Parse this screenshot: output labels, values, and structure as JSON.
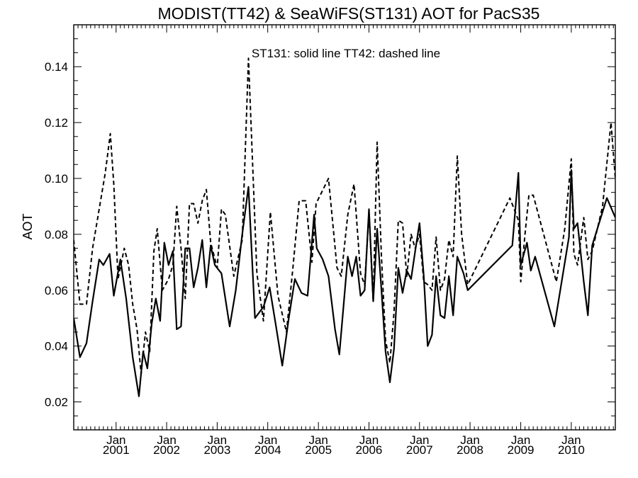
{
  "chart_data": {
    "type": "line",
    "title": "MODIST(TT42) & SeaWiFS(ST131)  AOT for PacS35",
    "annotation": "ST131: solid line   TT42: dashed line",
    "xlabel": "",
    "ylabel": "AOT",
    "xlim": [
      "2000-03-01",
      "2010-11-15"
    ],
    "ylim": [
      0.01,
      0.155
    ],
    "y_ticks": [
      0.02,
      0.04,
      0.06,
      0.08,
      0.1,
      0.12,
      0.14
    ],
    "y_tick_labels": [
      "0.02",
      "0.04",
      "0.06",
      "0.08",
      "0.10",
      "0.12",
      "0.14"
    ],
    "x_ticks": [
      {
        "month": "Jan",
        "year": "2001",
        "date": "2001-01-01"
      },
      {
        "month": "Jan",
        "year": "2002",
        "date": "2002-01-01"
      },
      {
        "month": "Jan",
        "year": "2003",
        "date": "2003-01-01"
      },
      {
        "month": "Jan",
        "year": "2004",
        "date": "2004-01-01"
      },
      {
        "month": "Jan",
        "year": "2005",
        "date": "2005-01-01"
      },
      {
        "month": "Jan",
        "year": "2006",
        "date": "2006-01-01"
      },
      {
        "month": "Jan",
        "year": "2007",
        "date": "2007-01-01"
      },
      {
        "month": "Jan",
        "year": "2008",
        "date": "2008-01-01"
      },
      {
        "month": "Jan",
        "year": "2009",
        "date": "2009-01-01"
      },
      {
        "month": "Jan",
        "year": "2010",
        "date": "2010-01-01"
      }
    ],
    "grid": false,
    "series": [
      {
        "name": "ST131",
        "style": "solid",
        "color": "#000000",
        "points": [
          [
            "2000-03-01",
            0.05
          ],
          [
            "2000-04-15",
            0.036
          ],
          [
            "2000-06-01",
            0.041
          ],
          [
            "2000-07-15",
            0.056
          ],
          [
            "2000-09-01",
            0.071
          ],
          [
            "2000-10-01",
            0.069
          ],
          [
            "2000-11-15",
            0.073
          ],
          [
            "2000-12-15",
            0.058
          ],
          [
            "2001-02-01",
            0.071
          ],
          [
            "2001-03-15",
            0.057
          ],
          [
            "2001-05-01",
            0.036
          ],
          [
            "2001-06-15",
            0.022
          ],
          [
            "2001-07-15",
            0.038
          ],
          [
            "2001-08-15",
            0.032
          ],
          [
            "2001-09-15",
            0.048
          ],
          [
            "2001-10-15",
            0.057
          ],
          [
            "2001-11-15",
            0.049
          ],
          [
            "2001-12-15",
            0.077
          ],
          [
            "2002-01-15",
            0.069
          ],
          [
            "2002-02-15",
            0.074
          ],
          [
            "2002-03-15",
            0.046
          ],
          [
            "2002-04-15",
            0.047
          ],
          [
            "2002-05-15",
            0.075
          ],
          [
            "2002-06-15",
            0.075
          ],
          [
            "2002-07-15",
            0.061
          ],
          [
            "2002-08-15",
            0.068
          ],
          [
            "2002-09-15",
            0.078
          ],
          [
            "2002-10-15",
            0.061
          ],
          [
            "2002-11-15",
            0.076
          ],
          [
            "2002-12-15",
            0.069
          ],
          [
            "2003-02-01",
            0.066
          ],
          [
            "2003-04-01",
            0.047
          ],
          [
            "2003-05-15",
            0.06
          ],
          [
            "2003-07-01",
            0.08
          ],
          [
            "2003-08-15",
            0.097
          ],
          [
            "2003-10-01",
            0.05
          ],
          [
            "2003-12-01",
            0.054
          ],
          [
            "2004-01-15",
            0.061
          ],
          [
            "2004-03-01",
            0.047
          ],
          [
            "2004-04-15",
            0.033
          ],
          [
            "2004-06-01",
            0.05
          ],
          [
            "2004-07-15",
            0.064
          ],
          [
            "2004-09-01",
            0.059
          ],
          [
            "2004-10-15",
            0.058
          ],
          [
            "2004-12-01",
            0.087
          ],
          [
            "2004-12-20",
            0.075
          ],
          [
            "2005-02-01",
            0.071
          ],
          [
            "2005-03-15",
            0.065
          ],
          [
            "2005-05-01",
            0.046
          ],
          [
            "2005-06-01",
            0.037
          ],
          [
            "2005-07-01",
            0.054
          ],
          [
            "2005-08-01",
            0.072
          ],
          [
            "2005-09-01",
            0.065
          ],
          [
            "2005-10-01",
            0.072
          ],
          [
            "2005-11-01",
            0.058
          ],
          [
            "2005-12-01",
            0.06
          ],
          [
            "2006-01-01",
            0.089
          ],
          [
            "2006-02-01",
            0.056
          ],
          [
            "2006-03-01",
            0.082
          ],
          [
            "2006-04-01",
            0.06
          ],
          [
            "2006-05-01",
            0.038
          ],
          [
            "2006-06-01",
            0.027
          ],
          [
            "2006-07-01",
            0.039
          ],
          [
            "2006-08-01",
            0.068
          ],
          [
            "2006-09-01",
            0.059
          ],
          [
            "2006-10-01",
            0.067
          ],
          [
            "2006-11-01",
            0.064
          ],
          [
            "2006-12-01",
            0.074
          ],
          [
            "2007-01-01",
            0.084
          ],
          [
            "2007-02-01",
            0.065
          ],
          [
            "2007-03-01",
            0.04
          ],
          [
            "2007-04-01",
            0.044
          ],
          [
            "2007-05-01",
            0.065
          ],
          [
            "2007-06-01",
            0.051
          ],
          [
            "2007-07-01",
            0.05
          ],
          [
            "2007-08-01",
            0.065
          ],
          [
            "2007-09-01",
            0.051
          ],
          [
            "2007-10-01",
            0.072
          ],
          [
            "2007-11-15",
            0.066
          ],
          [
            "2007-12-15",
            0.06
          ],
          [
            "2008-11-01",
            0.076
          ],
          [
            "2008-12-15",
            0.102
          ],
          [
            "2009-01-01",
            0.069
          ],
          [
            "2009-02-15",
            0.077
          ],
          [
            "2009-03-15",
            0.067
          ],
          [
            "2009-04-15",
            0.072
          ],
          [
            "2009-09-01",
            0.047
          ],
          [
            "2009-12-15",
            0.079
          ],
          [
            "2010-01-01",
            0.103
          ],
          [
            "2010-01-20",
            0.082
          ],
          [
            "2010-02-15",
            0.084
          ],
          [
            "2010-04-01",
            0.063
          ],
          [
            "2010-05-01",
            0.051
          ],
          [
            "2010-06-01",
            0.076
          ],
          [
            "2010-09-15",
            0.093
          ],
          [
            "2010-11-15",
            0.086
          ]
        ]
      },
      {
        "name": "TT42",
        "style": "dashed",
        "color": "#000000",
        "points": [
          [
            "2000-03-01",
            0.078
          ],
          [
            "2000-04-15",
            0.055
          ],
          [
            "2000-06-01",
            0.055
          ],
          [
            "2000-07-15",
            0.075
          ],
          [
            "2000-09-01",
            0.089
          ],
          [
            "2000-10-15",
            0.102
          ],
          [
            "2000-11-20",
            0.116
          ],
          [
            "2000-12-15",
            0.098
          ],
          [
            "2001-01-15",
            0.064
          ],
          [
            "2001-03-01",
            0.075
          ],
          [
            "2001-04-01",
            0.069
          ],
          [
            "2001-05-01",
            0.055
          ],
          [
            "2001-06-01",
            0.046
          ],
          [
            "2001-07-01",
            0.03
          ],
          [
            "2001-08-01",
            0.045
          ],
          [
            "2001-09-01",
            0.038
          ],
          [
            "2001-10-01",
            0.074
          ],
          [
            "2001-10-25",
            0.082
          ],
          [
            "2001-12-01",
            0.06
          ],
          [
            "2002-01-15",
            0.064
          ],
          [
            "2002-02-15",
            0.069
          ],
          [
            "2002-03-15",
            0.09
          ],
          [
            "2002-04-15",
            0.075
          ],
          [
            "2002-05-15",
            0.057
          ],
          [
            "2002-06-15",
            0.091
          ],
          [
            "2002-07-15",
            0.091
          ],
          [
            "2002-08-15",
            0.084
          ],
          [
            "2002-09-15",
            0.092
          ],
          [
            "2002-10-15",
            0.096
          ],
          [
            "2002-11-15",
            0.077
          ],
          [
            "2003-01-01",
            0.068
          ],
          [
            "2003-02-01",
            0.089
          ],
          [
            "2003-03-01",
            0.087
          ],
          [
            "2003-05-01",
            0.065
          ],
          [
            "2003-07-01",
            0.078
          ],
          [
            "2003-08-15",
            0.143
          ],
          [
            "2003-10-15",
            0.066
          ],
          [
            "2003-12-01",
            0.049
          ],
          [
            "2004-01-20",
            0.088
          ],
          [
            "2004-03-15",
            0.058
          ],
          [
            "2004-05-15",
            0.045
          ],
          [
            "2004-07-01",
            0.068
          ],
          [
            "2004-08-15",
            0.092
          ],
          [
            "2004-10-01",
            0.092
          ],
          [
            "2004-11-15",
            0.07
          ],
          [
            "2004-12-15",
            0.091
          ],
          [
            "2005-03-15",
            0.1
          ],
          [
            "2005-05-15",
            0.068
          ],
          [
            "2005-06-15",
            0.065
          ],
          [
            "2005-08-01",
            0.087
          ],
          [
            "2005-09-15",
            0.098
          ],
          [
            "2005-11-01",
            0.066
          ],
          [
            "2005-12-01",
            0.062
          ],
          [
            "2006-01-01",
            0.088
          ],
          [
            "2006-02-01",
            0.056
          ],
          [
            "2006-03-01",
            0.113
          ],
          [
            "2006-04-01",
            0.072
          ],
          [
            "2006-05-01",
            0.042
          ],
          [
            "2006-06-01",
            0.034
          ],
          [
            "2006-07-01",
            0.052
          ],
          [
            "2006-08-01",
            0.085
          ],
          [
            "2006-09-01",
            0.084
          ],
          [
            "2006-10-01",
            0.065
          ],
          [
            "2006-11-01",
            0.08
          ],
          [
            "2006-12-01",
            0.075
          ],
          [
            "2007-01-01",
            0.08
          ],
          [
            "2007-02-01",
            0.063
          ],
          [
            "2007-03-01",
            0.062
          ],
          [
            "2007-04-01",
            0.06
          ],
          [
            "2007-05-01",
            0.079
          ],
          [
            "2007-06-01",
            0.06
          ],
          [
            "2007-07-01",
            0.064
          ],
          [
            "2007-08-01",
            0.078
          ],
          [
            "2007-09-01",
            0.072
          ],
          [
            "2007-10-01",
            0.108
          ],
          [
            "2007-11-01",
            0.08
          ],
          [
            "2007-12-15",
            0.062
          ],
          [
            "2008-10-15",
            0.093
          ],
          [
            "2008-12-15",
            0.085
          ],
          [
            "2009-01-01",
            0.063
          ],
          [
            "2009-02-01",
            0.08
          ],
          [
            "2009-03-01",
            0.094
          ],
          [
            "2009-04-01",
            0.094
          ],
          [
            "2009-09-15",
            0.063
          ],
          [
            "2009-11-15",
            0.082
          ],
          [
            "2010-01-01",
            0.107
          ],
          [
            "2010-01-20",
            0.073
          ],
          [
            "2010-02-15",
            0.069
          ],
          [
            "2010-04-01",
            0.086
          ],
          [
            "2010-05-01",
            0.071
          ],
          [
            "2010-06-01",
            0.074
          ],
          [
            "2010-08-15",
            0.09
          ],
          [
            "2010-10-15",
            0.12
          ],
          [
            "2010-11-15",
            0.1
          ]
        ]
      }
    ]
  }
}
